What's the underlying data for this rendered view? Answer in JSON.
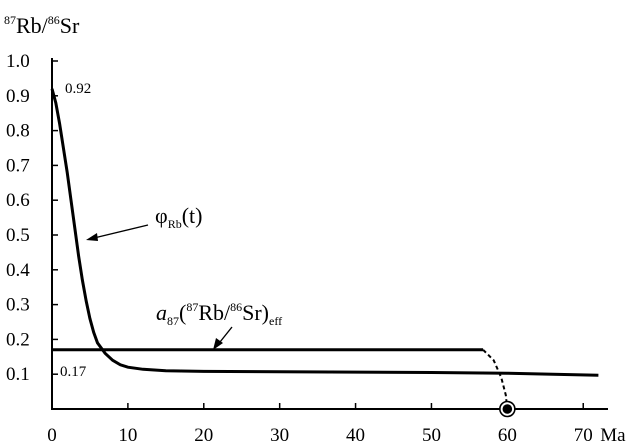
{
  "chart_data": {
    "type": "line",
    "ylabel": {
      "sup1": "87",
      "main1": "Rb/",
      "sup2": "86",
      "main2": "Sr"
    },
    "xunit": "Ma",
    "x_ticks": [
      {
        "value": 0,
        "label": "0"
      },
      {
        "value": 10,
        "label": "10"
      },
      {
        "value": 20,
        "label": "20"
      },
      {
        "value": 30,
        "label": "30"
      },
      {
        "value": 40,
        "label": "40"
      },
      {
        "value": 50,
        "label": "50"
      },
      {
        "value": 60,
        "label": "60"
      },
      {
        "value": 70,
        "label": "70"
      }
    ],
    "y_ticks": [
      {
        "value": 0.1,
        "label": "0.1"
      },
      {
        "value": 0.2,
        "label": "0.2"
      },
      {
        "value": 0.3,
        "label": "0.3"
      },
      {
        "value": 0.4,
        "label": "0.4"
      },
      {
        "value": 0.5,
        "label": "0.5"
      },
      {
        "value": 0.6,
        "label": "0.6"
      },
      {
        "value": 0.7,
        "label": "0.7"
      },
      {
        "value": 0.8,
        "label": "0.8"
      },
      {
        "value": 0.9,
        "label": "0.9"
      },
      {
        "value": 1.0,
        "label": "1.0"
      }
    ],
    "xlim": [
      0,
      73
    ],
    "ylim": [
      0,
      1.0
    ],
    "grid": false,
    "series": [
      {
        "name": "φRb(t)",
        "points": [
          [
            0,
            0.92
          ],
          [
            0.5,
            0.88
          ],
          [
            1,
            0.82
          ],
          [
            1.5,
            0.75
          ],
          [
            2,
            0.68
          ],
          [
            2.5,
            0.6
          ],
          [
            3,
            0.52
          ],
          [
            3.5,
            0.44
          ],
          [
            4,
            0.37
          ],
          [
            4.5,
            0.31
          ],
          [
            5,
            0.26
          ],
          [
            5.5,
            0.22
          ],
          [
            6,
            0.19
          ],
          [
            7,
            0.16
          ],
          [
            8,
            0.14
          ],
          [
            9,
            0.127
          ],
          [
            10,
            0.12
          ],
          [
            12,
            0.114
          ],
          [
            15,
            0.11
          ],
          [
            20,
            0.108
          ],
          [
            30,
            0.107
          ],
          [
            40,
            0.106
          ],
          [
            50,
            0.105
          ],
          [
            60,
            0.103
          ],
          [
            66,
            0.1
          ],
          [
            72,
            0.097
          ]
        ]
      },
      {
        "name": "a87(87Rb/86Sr)eff",
        "points": [
          [
            0,
            0.17
          ],
          [
            56.8,
            0.17
          ]
        ]
      }
    ],
    "dashed_connector": [
      [
        56.8,
        0.17
      ],
      [
        58.2,
        0.14
      ],
      [
        59.2,
        0.09
      ],
      [
        59.8,
        0.04
      ],
      [
        60,
        0.0
      ]
    ],
    "endpoint_marker": {
      "x": 60,
      "y": 0.0
    },
    "annotations": {
      "start_value": "0.92",
      "plateau_value": "0.17",
      "curve_label": {
        "base": "φ",
        "sub": "Rb",
        "tail": "(t)"
      },
      "line_label": {
        "a": "a",
        "a_sub": "87",
        "open": "(",
        "sup1": "87",
        "mid": "Rb/",
        "sup2": "86",
        "end": "Sr)",
        "sub": "eff"
      }
    }
  }
}
